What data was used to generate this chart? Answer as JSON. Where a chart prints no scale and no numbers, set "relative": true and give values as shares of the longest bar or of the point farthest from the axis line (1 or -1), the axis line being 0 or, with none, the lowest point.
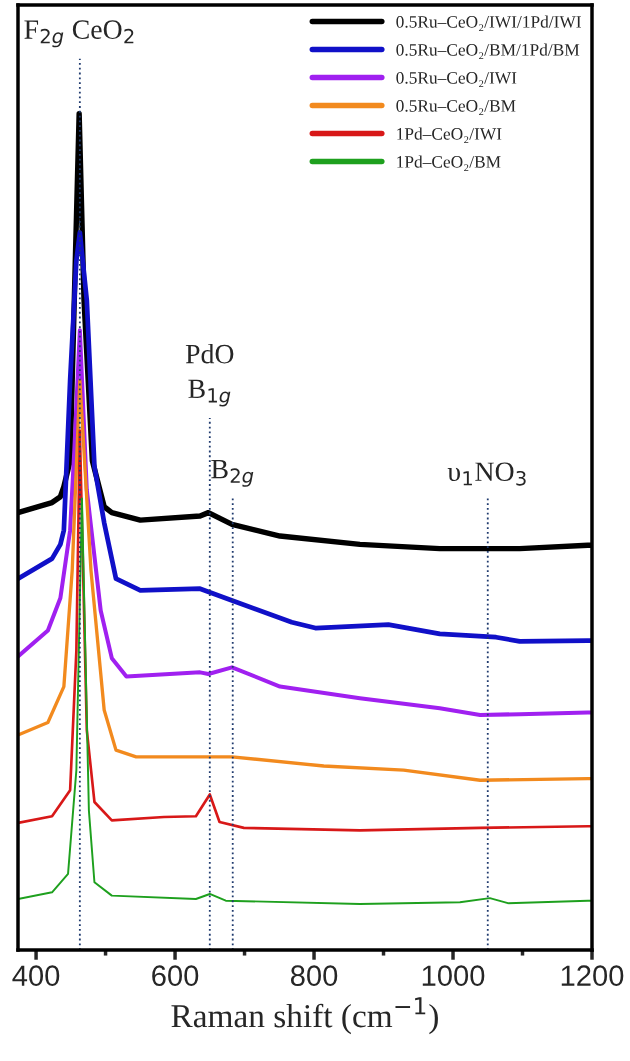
{
  "chart_data": {
    "type": "line",
    "xlabel": "Raman shift (cm$^{−1}$)",
    "relative": true,
    "xlim": [
      374,
      1200
    ],
    "xticks": [
      400,
      {
        "value": 500,
        "label": null
      },
      600,
      {
        "value": 700,
        "label": null
      },
      800,
      {
        "value": 900,
        "label": null
      },
      1000,
      {
        "value": 1100,
        "label": null
      },
      1200
    ],
    "tick_labels": "x",
    "legend": "top right",
    "grid": false,
    "line_style": "solid",
    "marker": "none",
    "ref_lines": [
      {
        "axis": "x",
        "value": 463,
        "label": "F$_{2g}$ CeO$_{2}$",
        "color": "#1f3a6e",
        "line_style": "dotted"
      },
      {
        "axis": "x",
        "value": 650,
        "label": "PdO\nB$_{1g}$",
        "color": "#1f3a6e",
        "line_style": "dotted"
      },
      {
        "axis": "x",
        "value": 683,
        "label": "B$_{2g}$",
        "color": "#1f3a6e",
        "line_style": "dotted"
      },
      {
        "axis": "x",
        "value": 1050,
        "label": "υ$_{1}$NO$_{3}$",
        "color": "#1f3a6e",
        "line_style": "dotted"
      }
    ],
    "series": [
      {
        "name": "0.5Ru–CeO₂/IWI/1Pd/IWI",
        "color": "#000000",
        "x": [
          374,
          423,
          435,
          440,
          449,
          455,
          462,
          469,
          481,
          498,
          509,
          550,
          636,
          648,
          682,
          751,
          866,
          981,
          1096,
          1194,
          1200
        ],
        "values": [
          0.523,
          0.535,
          0.542,
          0.554,
          0.585,
          0.777,
          1.0,
          0.777,
          0.585,
          0.53,
          0.523,
          0.514,
          0.519,
          0.523,
          0.509,
          0.495,
          0.485,
          0.48,
          0.48,
          0.484,
          0.484
        ]
      },
      {
        "name": "0.5Ru–CeO₂/BM/1Pd/BM",
        "color": "#1010c8",
        "x": [
          374,
          423,
          435,
          440,
          449,
          458,
          463,
          473,
          484,
          498,
          515,
          550,
          636,
          682,
          768,
          802,
          907,
          981,
          1062,
          1096,
          1194,
          1200
        ],
        "values": [
          0.444,
          0.468,
          0.485,
          0.502,
          0.681,
          0.824,
          0.858,
          0.777,
          0.578,
          0.511,
          0.444,
          0.43,
          0.432,
          0.418,
          0.392,
          0.385,
          0.389,
          0.378,
          0.374,
          0.369,
          0.37,
          0.37
        ]
      },
      {
        "name": "0.5Ru–CeO₂/IWI",
        "color": "#a020f0",
        "x": [
          374,
          417,
          435,
          449,
          455,
          463,
          473,
          493,
          509,
          530,
          636,
          648,
          682,
          751,
          866,
          981,
          1039,
          1096,
          1194,
          1200
        ],
        "values": [
          0.351,
          0.382,
          0.421,
          0.502,
          0.597,
          0.741,
          0.55,
          0.406,
          0.349,
          0.327,
          0.332,
          0.33,
          0.338,
          0.315,
          0.301,
          0.289,
          0.281,
          0.282,
          0.284,
          0.284
        ]
      },
      {
        "name": "0.5Ru–CeO₂/BM",
        "color": "#f28a1e",
        "x": [
          374,
          417,
          440,
          452,
          463,
          479,
          498,
          515,
          544,
          682,
          814,
          929,
          1039,
          1194,
          1200
        ],
        "values": [
          0.257,
          0.272,
          0.315,
          0.454,
          0.681,
          0.454,
          0.287,
          0.239,
          0.231,
          0.231,
          0.22,
          0.215,
          0.203,
          0.205,
          0.205
        ]
      },
      {
        "name": "1Pd–CeO₂/IWI",
        "color": "#d81818",
        "x": [
          374,
          423,
          449,
          458,
          463,
          473,
          484,
          509,
          584,
          630,
          650,
          664,
          699,
          866,
          1039,
          1194,
          1200
        ],
        "values": [
          0.152,
          0.16,
          0.191,
          0.358,
          0.621,
          0.263,
          0.177,
          0.155,
          0.159,
          0.16,
          0.186,
          0.153,
          0.146,
          0.143,
          0.146,
          0.148,
          0.148
        ]
      },
      {
        "name": "1Pd–CeO₂/BM",
        "color": "#1ea01e",
        "x": [
          374,
          423,
          446,
          458,
          466,
          476,
          484,
          509,
          630,
          650,
          673,
          866,
          1010,
          1053,
          1079,
          1194,
          1200
        ],
        "values": [
          0.061,
          0.069,
          0.091,
          0.215,
          0.54,
          0.167,
          0.081,
          0.065,
          0.061,
          0.067,
          0.059,
          0.055,
          0.057,
          0.062,
          0.056,
          0.059,
          0.059
        ]
      }
    ]
  }
}
